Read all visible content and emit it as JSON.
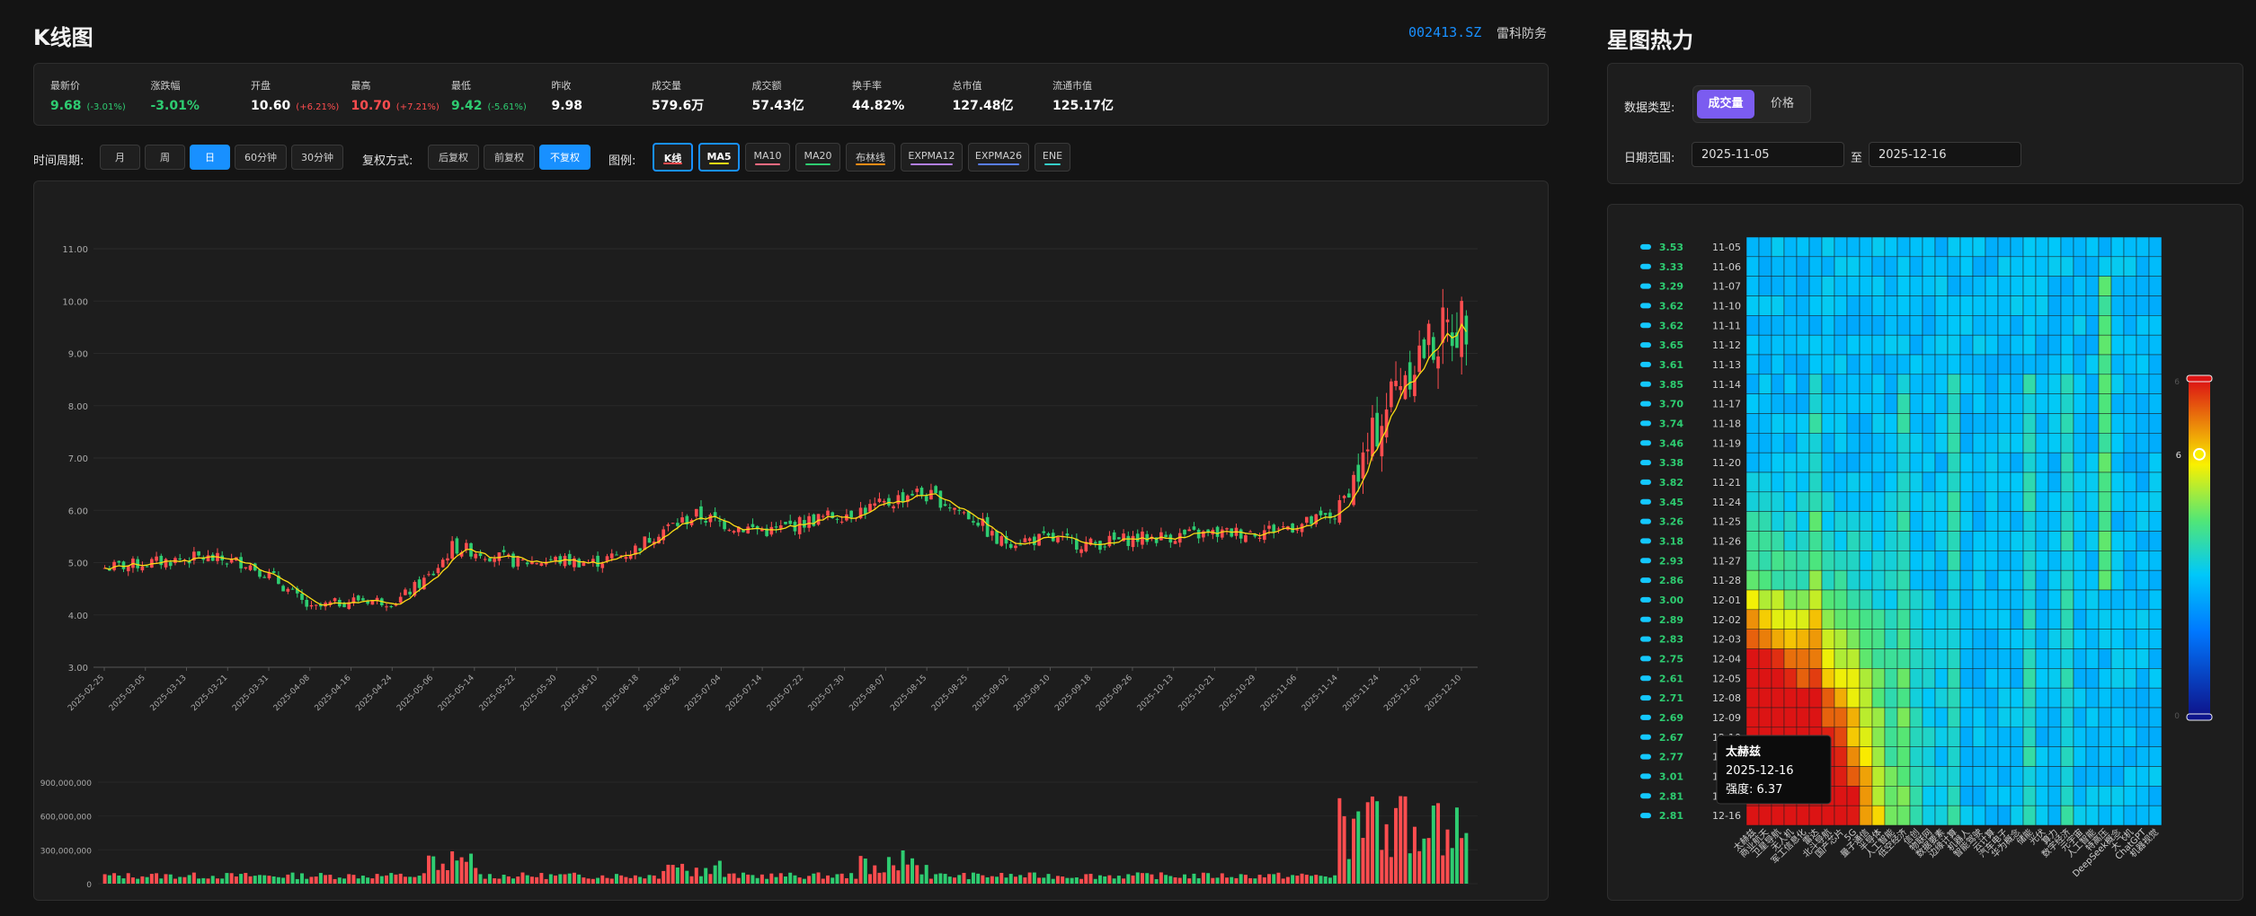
{
  "left": {
    "title": "K线图",
    "stock_code": "002413.SZ",
    "stock_name": "雷科防务",
    "stats": [
      {
        "label": "最新价",
        "value": "9.68",
        "sub": "(-3.01%)",
        "color": "#2ecc71"
      },
      {
        "label": "涨跌幅",
        "value": "-3.01%",
        "sub": "",
        "color": "#2ecc71"
      },
      {
        "label": "开盘",
        "value": "10.60",
        "sub": "(+6.21%)",
        "color": "#ffffff",
        "sub_color": "#ff4d4f"
      },
      {
        "label": "最高",
        "value": "10.70",
        "sub": "(+7.21%)",
        "color": "#ff4d4f"
      },
      {
        "label": "最低",
        "value": "9.42",
        "sub": "(-5.61%)",
        "color": "#2ecc71"
      },
      {
        "label": "昨收",
        "value": "9.98",
        "sub": "",
        "color": "#ffffff"
      },
      {
        "label": "成交量",
        "value": "579.6万",
        "sub": "",
        "color": "#ffffff"
      },
      {
        "label": "成交额",
        "value": "57.43亿",
        "sub": "",
        "color": "#ffffff"
      },
      {
        "label": "换手率",
        "value": "44.82%",
        "sub": "",
        "color": "#ffffff"
      },
      {
        "label": "总市值",
        "value": "127.48亿",
        "sub": "",
        "color": "#ffffff"
      },
      {
        "label": "流通市值",
        "value": "125.17亿",
        "sub": "",
        "color": "#ffffff"
      }
    ],
    "period_label": "时间周期:",
    "periods": [
      "月",
      "周",
      "日",
      "60分钟",
      "30分钟"
    ],
    "period_active": 2,
    "adjust_label": "复权方式:",
    "adjusts": [
      "后复权",
      "前复权",
      "不复权"
    ],
    "adjust_active": 2,
    "legend_label": "图例:",
    "legends": [
      {
        "name": "K线",
        "color": "#ff4d4f",
        "on": true
      },
      {
        "name": "MA5",
        "color": "#fadb14",
        "on": true
      },
      {
        "name": "MA10",
        "color": "#ff6b81",
        "on": false
      },
      {
        "name": "MA20",
        "color": "#2ecc71",
        "on": false
      },
      {
        "name": "布林线",
        "color": "#fa8c16",
        "on": false
      },
      {
        "name": "EXPMA12",
        "color": "#b37feb",
        "on": false
      },
      {
        "name": "EXPMA26",
        "color": "#597ef7",
        "on": false
      },
      {
        "name": "ENE",
        "color": "#36cfc9",
        "on": false
      }
    ]
  },
  "chart_data": {
    "type": "candlestick",
    "y_ticks": [
      "11.00",
      "10.00",
      "9.00",
      "8.00",
      "7.00",
      "6.00",
      "5.00",
      "4.00",
      "3.00"
    ],
    "ylim": [
      3,
      11
    ],
    "x_ticks": [
      "2025-02-25",
      "2025-03-05",
      "2025-03-13",
      "2025-03-21",
      "2025-03-31",
      "2025-04-08",
      "2025-04-16",
      "2025-04-24",
      "2025-05-06",
      "2025-05-14",
      "2025-05-22",
      "2025-05-30",
      "2025-06-10",
      "2025-06-18",
      "2025-06-26",
      "2025-07-04",
      "2025-07-14",
      "2025-07-22",
      "2025-07-30",
      "2025-08-07",
      "2025-08-15",
      "2025-08-25",
      "2025-09-02",
      "2025-09-10",
      "2025-09-18",
      "2025-09-26",
      "2025-10-13",
      "2025-10-21",
      "2025-10-29",
      "2025-11-06",
      "2025-11-14",
      "2025-11-24",
      "2025-12-02",
      "2025-12-10"
    ],
    "close_anchors": [
      [
        0,
        4.9
      ],
      [
        10,
        5.0
      ],
      [
        20,
        5.1
      ],
      [
        30,
        5.0
      ],
      [
        36,
        4.7
      ],
      [
        40,
        4.4
      ],
      [
        44,
        4.1
      ],
      [
        48,
        4.2
      ],
      [
        54,
        4.3
      ],
      [
        62,
        4.25
      ],
      [
        70,
        4.8
      ],
      [
        74,
        5.3
      ],
      [
        80,
        5.2
      ],
      [
        88,
        5.0
      ],
      [
        96,
        5.05
      ],
      [
        104,
        5.0
      ],
      [
        112,
        5.2
      ],
      [
        118,
        5.6
      ],
      [
        126,
        5.9
      ],
      [
        134,
        5.7
      ],
      [
        142,
        5.6
      ],
      [
        150,
        5.8
      ],
      [
        158,
        5.95
      ],
      [
        166,
        6.1
      ],
      [
        172,
        6.35
      ],
      [
        178,
        6.2
      ],
      [
        186,
        5.8
      ],
      [
        190,
        5.4
      ],
      [
        200,
        5.45
      ],
      [
        210,
        5.35
      ],
      [
        218,
        5.45
      ],
      [
        226,
        5.5
      ],
      [
        236,
        5.55
      ],
      [
        246,
        5.6
      ],
      [
        256,
        5.75
      ],
      [
        262,
        5.9
      ],
      [
        268,
        6.9
      ],
      [
        272,
        7.8
      ],
      [
        276,
        8.6
      ],
      [
        280,
        9.0
      ],
      [
        284,
        9.3
      ],
      [
        290,
        9.68
      ]
    ],
    "volume_ticks": [
      "900,000,000",
      "600,000,000",
      "300,000,000",
      "0"
    ],
    "volume_max": 900000000
  },
  "right": {
    "title": "星图热力",
    "data_type_label": "数据类型:",
    "data_types": [
      "成交量",
      "价格"
    ],
    "data_type_active": 0,
    "date_range_label": "日期范围:",
    "date_from": "2025-11-05",
    "date_to_label": "至",
    "date_to": "2025-12-16"
  },
  "heatmap": {
    "rows": [
      {
        "value": "3.53",
        "date": "11-05"
      },
      {
        "value": "3.33",
        "date": "11-06"
      },
      {
        "value": "3.29",
        "date": "11-07"
      },
      {
        "value": "3.62",
        "date": "11-10"
      },
      {
        "value": "3.62",
        "date": "11-11"
      },
      {
        "value": "3.65",
        "date": "11-12"
      },
      {
        "value": "3.61",
        "date": "11-13"
      },
      {
        "value": "3.85",
        "date": "11-14"
      },
      {
        "value": "3.70",
        "date": "11-17"
      },
      {
        "value": "3.74",
        "date": "11-18"
      },
      {
        "value": "3.46",
        "date": "11-19"
      },
      {
        "value": "3.38",
        "date": "11-20"
      },
      {
        "value": "3.82",
        "date": "11-21"
      },
      {
        "value": "3.45",
        "date": "11-24"
      },
      {
        "value": "3.26",
        "date": "11-25"
      },
      {
        "value": "3.18",
        "date": "11-26"
      },
      {
        "value": "2.93",
        "date": "11-27"
      },
      {
        "value": "2.86",
        "date": "11-28"
      },
      {
        "value": "3.00",
        "date": "12-01"
      },
      {
        "value": "2.89",
        "date": "12-02"
      },
      {
        "value": "2.83",
        "date": "12-03"
      },
      {
        "value": "2.75",
        "date": "12-04"
      },
      {
        "value": "2.61",
        "date": "12-05"
      },
      {
        "value": "2.71",
        "date": "12-08"
      },
      {
        "value": "2.69",
        "date": "12-09"
      },
      {
        "value": "2.67",
        "date": "12-10"
      },
      {
        "value": "2.77",
        "date": "12-11"
      },
      {
        "value": "3.01",
        "date": "12-12"
      },
      {
        "value": "2.81",
        "date": "12-15"
      },
      {
        "value": "2.81",
        "date": "12-16"
      }
    ],
    "columns": [
      "太赫兹",
      "商业航天",
      "卫星导航",
      "无人机",
      "军工信息化",
      "雷达",
      "北斗导航",
      "国产芯片",
      "5G",
      "量子通信",
      "半导体",
      "人工智能",
      "低空经济",
      "信创",
      "物联网",
      "数据要素",
      "边缘计算",
      "机器人",
      "智能驾驶",
      "云计算",
      "汽车电子",
      "华为概念",
      "储能",
      "光伏",
      "算力",
      "数字经济",
      "元宇宙",
      "人工智能",
      "特高压",
      "DeepSeek概念",
      "大飞机",
      "ChatGPT",
      "机器视觉"
    ],
    "visual_map": {
      "max_label": "6",
      "min_label": "0",
      "handle_value": "6"
    },
    "tooltip": {
      "title": "太赫兹",
      "date": "2025-12-16",
      "label": "强度",
      "value": "6.37"
    }
  }
}
